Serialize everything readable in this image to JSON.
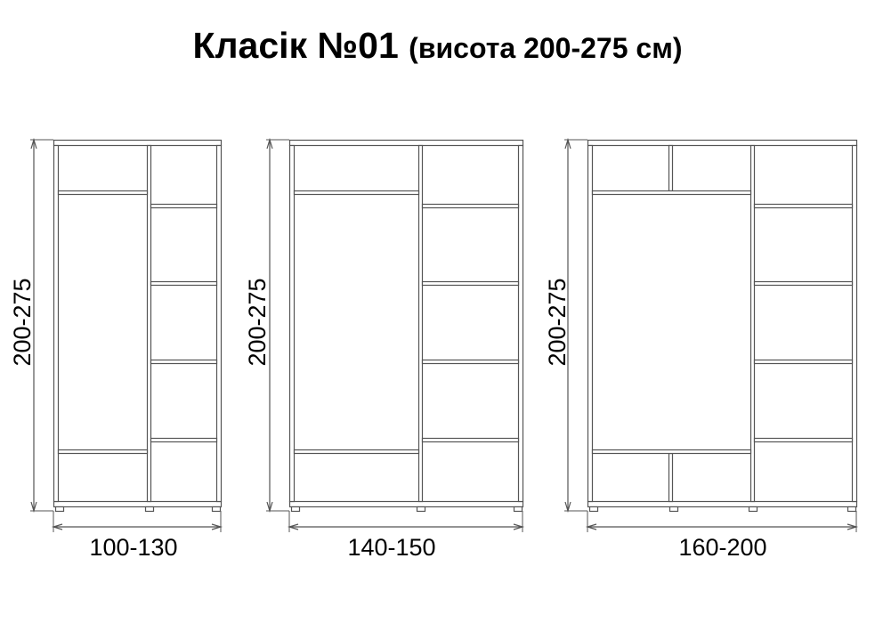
{
  "title": {
    "main": "Класік №01",
    "sub": "(висота 200-275 см)"
  },
  "wardrobes": [
    {
      "height_label": "200-275",
      "width_label": "100-130"
    },
    {
      "height_label": "200-275",
      "width_label": "140-150"
    },
    {
      "height_label": "200-275",
      "width_label": "160-200"
    }
  ],
  "colors": {
    "line": "#555555",
    "fill": "#ffffff",
    "text": "#000000"
  }
}
